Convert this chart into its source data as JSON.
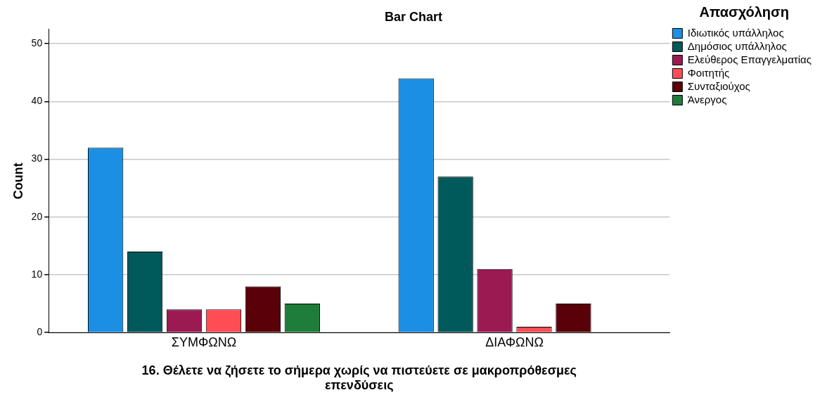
{
  "chart_data": {
    "type": "bar",
    "title": "Bar Chart",
    "xlabel": "16. Θέλετε να ζήσετε το σήμερα χωρίς να πιστεύετε σε μακροπρόθεσμες επενδύσεις",
    "ylabel": "Count",
    "legend_title": "Απασχόληση",
    "categories": [
      "ΣΥΜΦΩΝΩ",
      "ΔΙΑΦΩΝΩ"
    ],
    "series": [
      {
        "name": "Ιδιωτικός υπάλληλος",
        "color": "#1a8fe3",
        "values": [
          32,
          44
        ]
      },
      {
        "name": "Δημόσιος υπάλληλος",
        "color": "#00595a",
        "values": [
          14,
          27
        ]
      },
      {
        "name": "Ελεύθερος Επαγγελματίας",
        "color": "#9c1a52",
        "values": [
          4,
          11
        ]
      },
      {
        "name": "Φοιτητής",
        "color": "#ff4d55",
        "values": [
          4,
          1
        ]
      },
      {
        "name": "Συνταξιούχος",
        "color": "#5a0009",
        "values": [
          8,
          5
        ]
      },
      {
        "name": "Άνεργος",
        "color": "#1e7d3a",
        "values": [
          5,
          null
        ]
      }
    ],
    "ylim": [
      0,
      52.5
    ],
    "yticks": [
      0,
      10,
      20,
      30,
      40,
      50
    ],
    "grid": "y",
    "legend": "top right"
  }
}
